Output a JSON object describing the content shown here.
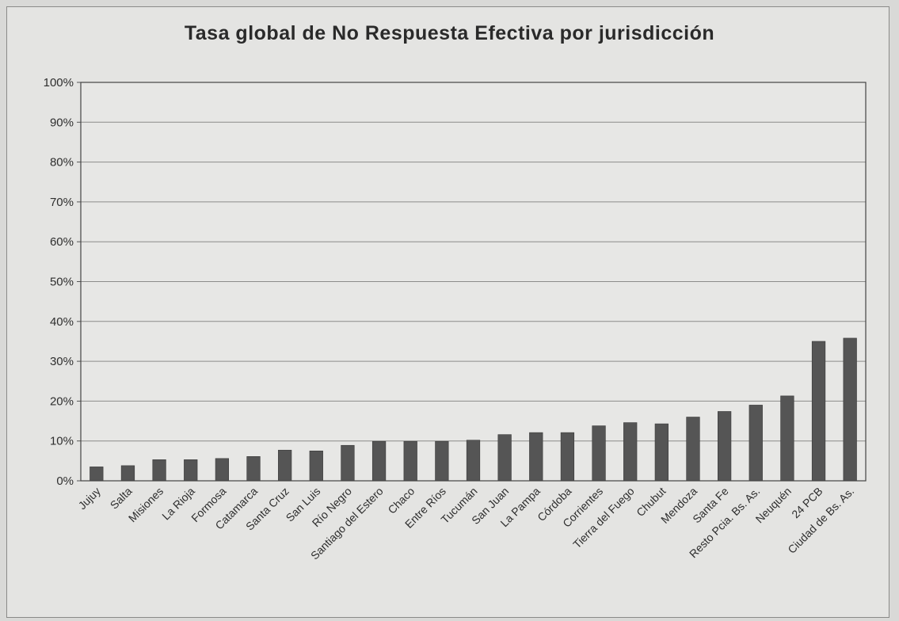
{
  "chart_data": {
    "type": "bar",
    "title": "Tasa global de No Respuesta Efectiva por jurisdicción",
    "xlabel": "",
    "ylabel": "",
    "ylim": [
      0,
      100
    ],
    "yticks": [
      "0%",
      "10%",
      "20%",
      "30%",
      "40%",
      "50%",
      "60%",
      "70%",
      "80%",
      "90%",
      "100%"
    ],
    "grid": true,
    "legend": "none",
    "bar_color": "#555555",
    "categories": [
      "Jujuy",
      "Salta",
      "Misiones",
      "La Rioja",
      "Formosa",
      "Catamarca",
      "Santa Cruz",
      "San Luis",
      "Río Negro",
      "Santiago del Estero",
      "Chaco",
      "Entre Ríos",
      "Tucumán",
      "San Juan",
      "La Pampa",
      "Córdoba",
      "Corrientes",
      "Tierra del Fuego",
      "Chubut",
      "Mendoza",
      "Santa Fe",
      "Resto Pcia. Bs. As.",
      "Neuquén",
      "24 PCB",
      "Ciudad de Bs. As."
    ],
    "values": [
      3.5,
      3.8,
      5.3,
      5.3,
      5.6,
      6.1,
      7.7,
      7.5,
      8.9,
      9.9,
      9.9,
      9.9,
      10.2,
      11.6,
      12.1,
      12.1,
      13.8,
      14.6,
      14.3,
      16.0,
      17.4,
      19.0,
      21.3,
      35.0,
      35.8
    ]
  }
}
